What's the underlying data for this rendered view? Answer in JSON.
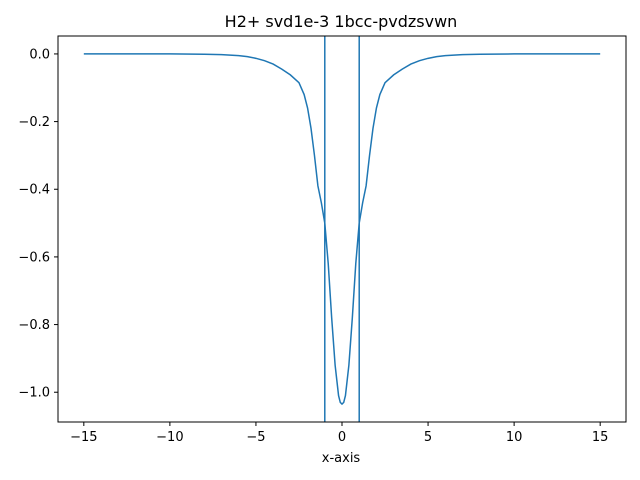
{
  "chart_data": {
    "type": "line",
    "title": "H2+ svd1e-3 1bcc-pvdzsvwn",
    "xlabel": "x-axis",
    "ylabel": "",
    "xlim": [
      -16.5,
      16.5
    ],
    "ylim": [
      -1.088,
      0.053
    ],
    "grid": false,
    "xticks": [
      -15,
      -10,
      -5,
      0,
      5,
      10,
      15
    ],
    "xtick_labels": [
      "−15",
      "−10",
      "−5",
      "0",
      "5",
      "10",
      "15"
    ],
    "yticks": [
      0.0,
      -0.2,
      -0.4,
      -0.6,
      -0.8,
      -1.0
    ],
    "ytick_labels": [
      "0.0",
      "−0.2",
      "−0.4",
      "−0.6",
      "−0.8",
      "−1.0"
    ],
    "line_color": "#1f77b4",
    "vlines": [
      -1.0,
      1.0
    ],
    "series": [
      {
        "x": [
          -15,
          -12,
          -10,
          -8,
          -7,
          -6,
          -5.5,
          -5,
          -4.5,
          -4,
          -3.5,
          -3,
          -2.5,
          -2.2,
          -2,
          -1.8,
          -1.6,
          -1.4,
          -1.2,
          -1.0,
          -0.8,
          -0.6,
          -0.4,
          -0.2,
          -0.1,
          0,
          0.1,
          0.2,
          0.4,
          0.6,
          0.8,
          1.0,
          1.2,
          1.4,
          1.6,
          1.8,
          2,
          2.2,
          2.5,
          3,
          3.5,
          4,
          4.5,
          5,
          5.5,
          6,
          7,
          8,
          10,
          12,
          15
        ],
        "values": [
          0.0,
          0.0,
          0.0,
          -0.001,
          -0.002,
          -0.005,
          -0.008,
          -0.013,
          -0.02,
          -0.03,
          -0.045,
          -0.062,
          -0.085,
          -0.12,
          -0.16,
          -0.22,
          -0.3,
          -0.39,
          -0.44,
          -0.5,
          -0.62,
          -0.78,
          -0.92,
          -1.01,
          -1.03,
          -1.035,
          -1.03,
          -1.01,
          -0.92,
          -0.78,
          -0.62,
          -0.5,
          -0.44,
          -0.39,
          -0.3,
          -0.22,
          -0.16,
          -0.12,
          -0.085,
          -0.062,
          -0.045,
          -0.03,
          -0.02,
          -0.013,
          -0.008,
          -0.005,
          -0.002,
          -0.001,
          0.0,
          0.0,
          0.0
        ]
      }
    ]
  }
}
